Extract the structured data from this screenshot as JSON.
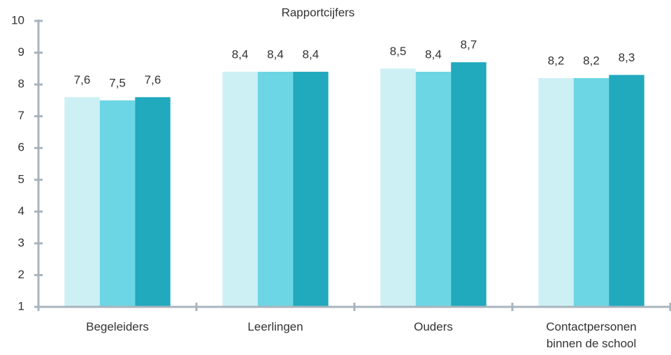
{
  "chart_data": {
    "type": "bar",
    "title": "Rapportcijfers",
    "categories": [
      "Begeleiders",
      "Leerlingen",
      "Ouders",
      "Contactpersonen binnen de school"
    ],
    "series": [
      {
        "color": "#cdf0f4",
        "values": [
          7.6,
          8.4,
          8.5,
          8.2
        ],
        "value_labels": [
          "7,6",
          "8,4",
          "8,5",
          "8,2"
        ]
      },
      {
        "color": "#6dd6e4",
        "values": [
          7.5,
          8.4,
          8.4,
          8.2
        ],
        "value_labels": [
          "7,5",
          "8,4",
          "8,4",
          "8,2"
        ]
      },
      {
        "color": "#21a9bd",
        "values": [
          7.6,
          8.4,
          8.7,
          8.3
        ],
        "value_labels": [
          "7,6",
          "8,4",
          "8,7",
          "8,3"
        ]
      }
    ],
    "ylim": [
      1,
      10
    ],
    "yticks": [
      1,
      2,
      3,
      4,
      5,
      6,
      7,
      8,
      9,
      10
    ],
    "grid": false
  }
}
